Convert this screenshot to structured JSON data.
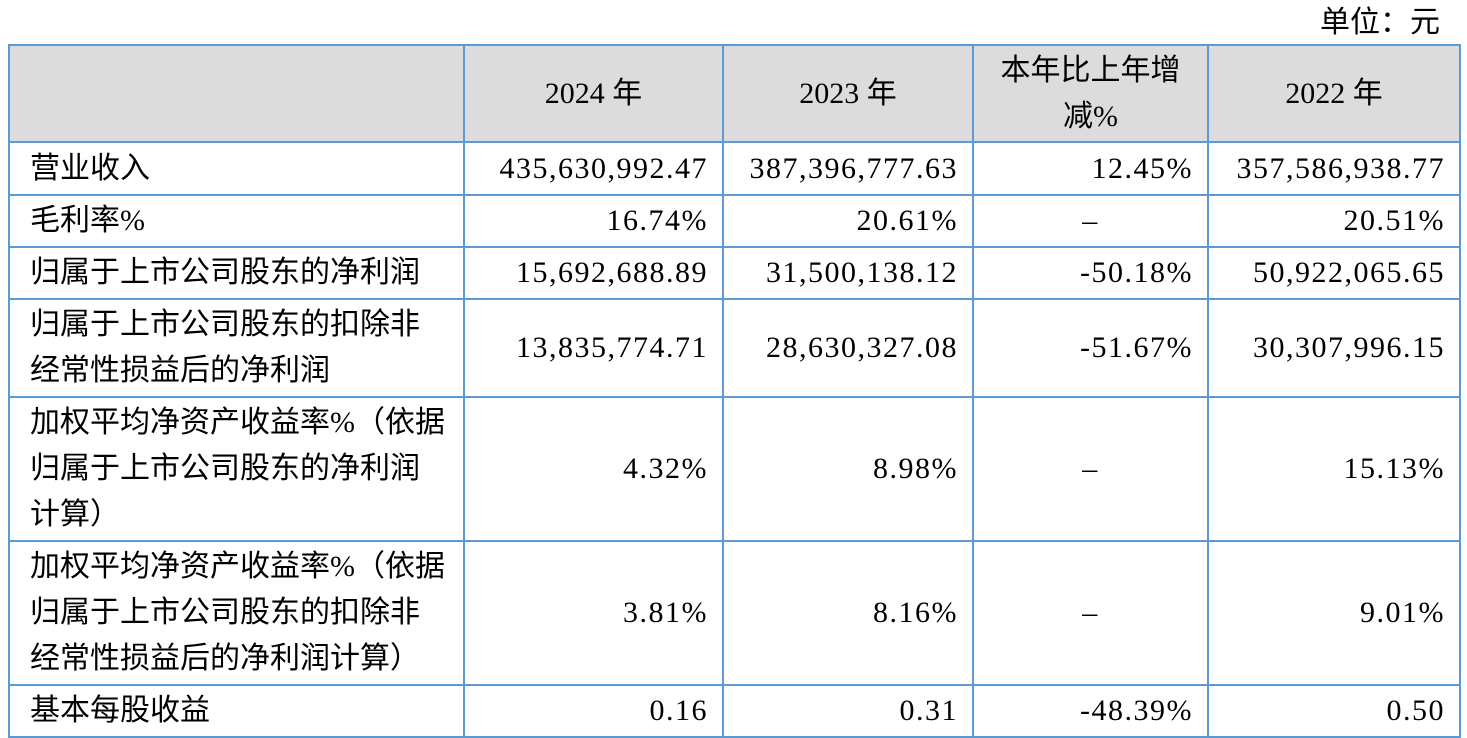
{
  "unit_label": "单位：元",
  "table": {
    "dash_placeholder": "–",
    "colors": {
      "border": "#5b9bd5",
      "header_bg": "#dcdcdc",
      "text": "#000000"
    },
    "header": [
      "",
      "2024 年",
      "2023 年",
      "本年比上年增减%",
      "2022 年"
    ],
    "rows": [
      {
        "label": "营业收入",
        "values": [
          "435,630,992.47",
          "387,396,777.63",
          "12.45%",
          "357,586,938.77"
        ]
      },
      {
        "label": "毛利率%",
        "values": [
          "16.74%",
          "20.61%",
          "–",
          "20.51%"
        ]
      },
      {
        "label": "归属于上市公司股东的净利润",
        "values": [
          "15,692,688.89",
          "31,500,138.12",
          "-50.18%",
          "50,922,065.65"
        ]
      },
      {
        "label": "归属于上市公司股东的扣除非经常性损益后的净利润",
        "values": [
          "13,835,774.71",
          "28,630,327.08",
          "-51.67%",
          "30,307,996.15"
        ]
      },
      {
        "label": "加权平均净资产收益率%（依据归属于上市公司股东的净利润计算）",
        "values": [
          "4.32%",
          "8.98%",
          "–",
          "15.13%"
        ]
      },
      {
        "label": "加权平均净资产收益率%（依据归属于上市公司股东的扣除非经常性损益后的净利润计算）",
        "values": [
          "3.81%",
          "8.16%",
          "–",
          "9.01%"
        ]
      },
      {
        "label": "基本每股收益",
        "values": [
          "0.16",
          "0.31",
          "-48.39%",
          "0.50"
        ]
      }
    ]
  }
}
